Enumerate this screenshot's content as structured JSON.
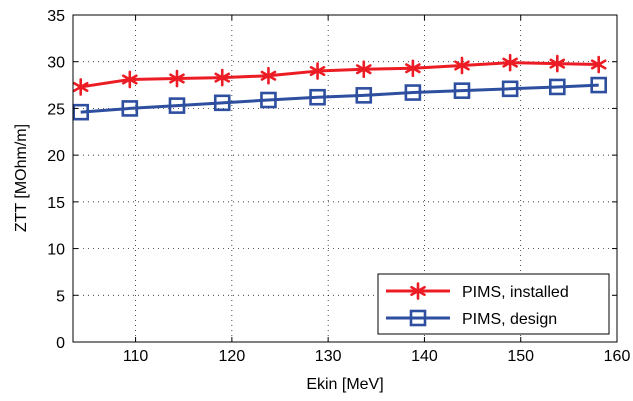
{
  "chart_data": {
    "type": "line",
    "title": "",
    "xlabel": "Ekin  [MeV]",
    "ylabel": "ZTT  [MOhm/m]",
    "xlim": [
      103.5,
      160
    ],
    "ylim": [
      0,
      35
    ],
    "xticks": [
      110,
      120,
      130,
      140,
      150,
      160
    ],
    "yticks": [
      0,
      5,
      10,
      15,
      20,
      25,
      30,
      35
    ],
    "grid": true,
    "legend_position": "bottom-right",
    "x": [
      104.3,
      109.4,
      114.3,
      119.0,
      123.8,
      128.9,
      133.7,
      138.8,
      143.9,
      148.9,
      153.8,
      158.1
    ],
    "series": [
      {
        "name": "PIMS, installed",
        "marker": "asterisk",
        "color": "#ec1c24",
        "values": [
          27.3,
          28.1,
          28.2,
          28.3,
          28.5,
          29.0,
          29.2,
          29.3,
          29.6,
          29.9,
          29.8,
          29.7
        ]
      },
      {
        "name": "PIMS, design",
        "marker": "square",
        "color": "#2e4ea0",
        "values": [
          24.6,
          25.0,
          25.3,
          25.6,
          25.9,
          26.2,
          26.4,
          26.7,
          26.9,
          27.1,
          27.3,
          27.5
        ]
      }
    ]
  }
}
